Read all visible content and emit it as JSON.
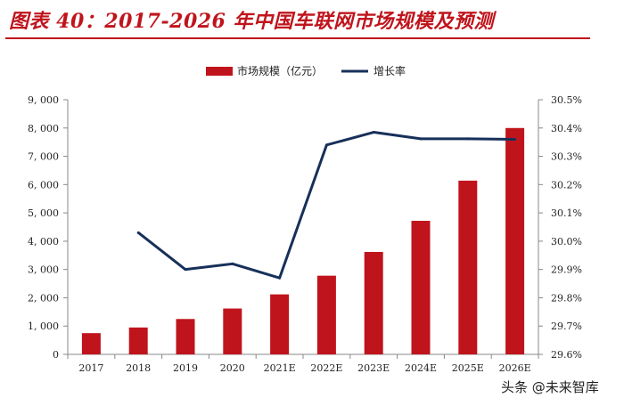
{
  "title": "图表 40：2017-2026 年中国车联网市场规模及预测",
  "watermark": "头条 @未来智库",
  "colors": {
    "bar": "#c0141c",
    "line": "#17305a",
    "title": "#c0141c"
  },
  "chart_data": {
    "type": "bar",
    "categories": [
      "2017",
      "2018",
      "2019",
      "2020",
      "2021E",
      "2022E",
      "2023E",
      "2024E",
      "2025E",
      "2026E"
    ],
    "series": [
      {
        "name": "市场规模（亿元）",
        "type": "bar",
        "axis": "left",
        "values": [
          750,
          950,
          1250,
          1620,
          2120,
          2780,
          3620,
          4720,
          6140,
          8000
        ]
      },
      {
        "name": "增长率",
        "type": "line",
        "axis": "right",
        "values": [
          null,
          30.03,
          29.9,
          29.92,
          29.87,
          30.34,
          30.385,
          30.362,
          30.362,
          30.36
        ]
      }
    ],
    "ylim": [
      0,
      9000
    ],
    "y_ticks": [
      "0",
      "1, 000",
      "2, 000",
      "3, 000",
      "4, 000",
      "5, 000",
      "6, 000",
      "7, 000",
      "8, 000",
      "9, 000"
    ],
    "y2lim": [
      29.6,
      30.5
    ],
    "y2_ticks": [
      "29.6%",
      "29.7%",
      "29.8%",
      "29.9%",
      "30.0%",
      "30.1%",
      "30.2%",
      "30.3%",
      "30.4%",
      "30.5%"
    ],
    "legend_position": "top-center",
    "grid": false
  }
}
